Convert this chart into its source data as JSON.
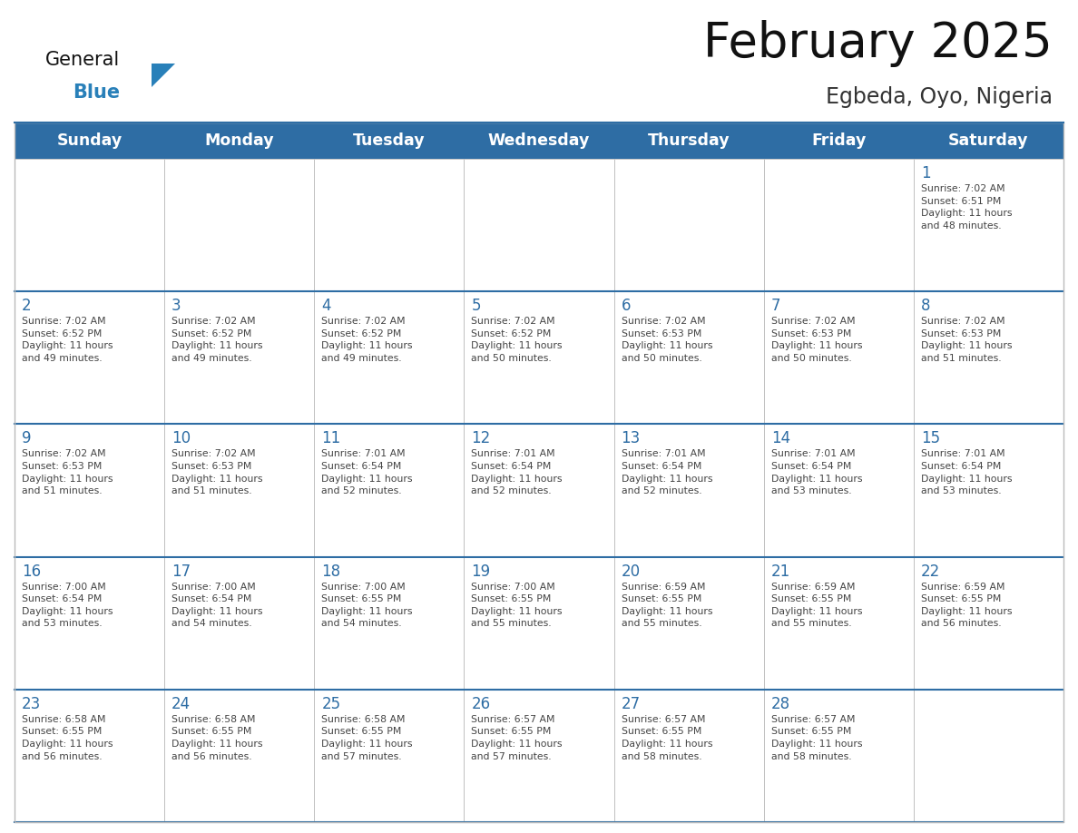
{
  "title": "February 2025",
  "subtitle": "Egbeda, Oyo, Nigeria",
  "header_color": "#2E6DA4",
  "header_text_color": "#FFFFFF",
  "cell_bg_color": "#FFFFFF",
  "cell_border_color": "#BBBBBB",
  "row_separator_color": "#2E6DA4",
  "day_num_color": "#2E6DA4",
  "text_color": "#444444",
  "days_of_week": [
    "Sunday",
    "Monday",
    "Tuesday",
    "Wednesday",
    "Thursday",
    "Friday",
    "Saturday"
  ],
  "weeks": [
    [
      {
        "day": "",
        "info": ""
      },
      {
        "day": "",
        "info": ""
      },
      {
        "day": "",
        "info": ""
      },
      {
        "day": "",
        "info": ""
      },
      {
        "day": "",
        "info": ""
      },
      {
        "day": "",
        "info": ""
      },
      {
        "day": "1",
        "info": "Sunrise: 7:02 AM\nSunset: 6:51 PM\nDaylight: 11 hours\nand 48 minutes."
      }
    ],
    [
      {
        "day": "2",
        "info": "Sunrise: 7:02 AM\nSunset: 6:52 PM\nDaylight: 11 hours\nand 49 minutes."
      },
      {
        "day": "3",
        "info": "Sunrise: 7:02 AM\nSunset: 6:52 PM\nDaylight: 11 hours\nand 49 minutes."
      },
      {
        "day": "4",
        "info": "Sunrise: 7:02 AM\nSunset: 6:52 PM\nDaylight: 11 hours\nand 49 minutes."
      },
      {
        "day": "5",
        "info": "Sunrise: 7:02 AM\nSunset: 6:52 PM\nDaylight: 11 hours\nand 50 minutes."
      },
      {
        "day": "6",
        "info": "Sunrise: 7:02 AM\nSunset: 6:53 PM\nDaylight: 11 hours\nand 50 minutes."
      },
      {
        "day": "7",
        "info": "Sunrise: 7:02 AM\nSunset: 6:53 PM\nDaylight: 11 hours\nand 50 minutes."
      },
      {
        "day": "8",
        "info": "Sunrise: 7:02 AM\nSunset: 6:53 PM\nDaylight: 11 hours\nand 51 minutes."
      }
    ],
    [
      {
        "day": "9",
        "info": "Sunrise: 7:02 AM\nSunset: 6:53 PM\nDaylight: 11 hours\nand 51 minutes."
      },
      {
        "day": "10",
        "info": "Sunrise: 7:02 AM\nSunset: 6:53 PM\nDaylight: 11 hours\nand 51 minutes."
      },
      {
        "day": "11",
        "info": "Sunrise: 7:01 AM\nSunset: 6:54 PM\nDaylight: 11 hours\nand 52 minutes."
      },
      {
        "day": "12",
        "info": "Sunrise: 7:01 AM\nSunset: 6:54 PM\nDaylight: 11 hours\nand 52 minutes."
      },
      {
        "day": "13",
        "info": "Sunrise: 7:01 AM\nSunset: 6:54 PM\nDaylight: 11 hours\nand 52 minutes."
      },
      {
        "day": "14",
        "info": "Sunrise: 7:01 AM\nSunset: 6:54 PM\nDaylight: 11 hours\nand 53 minutes."
      },
      {
        "day": "15",
        "info": "Sunrise: 7:01 AM\nSunset: 6:54 PM\nDaylight: 11 hours\nand 53 minutes."
      }
    ],
    [
      {
        "day": "16",
        "info": "Sunrise: 7:00 AM\nSunset: 6:54 PM\nDaylight: 11 hours\nand 53 minutes."
      },
      {
        "day": "17",
        "info": "Sunrise: 7:00 AM\nSunset: 6:54 PM\nDaylight: 11 hours\nand 54 minutes."
      },
      {
        "day": "18",
        "info": "Sunrise: 7:00 AM\nSunset: 6:55 PM\nDaylight: 11 hours\nand 54 minutes."
      },
      {
        "day": "19",
        "info": "Sunrise: 7:00 AM\nSunset: 6:55 PM\nDaylight: 11 hours\nand 55 minutes."
      },
      {
        "day": "20",
        "info": "Sunrise: 6:59 AM\nSunset: 6:55 PM\nDaylight: 11 hours\nand 55 minutes."
      },
      {
        "day": "21",
        "info": "Sunrise: 6:59 AM\nSunset: 6:55 PM\nDaylight: 11 hours\nand 55 minutes."
      },
      {
        "day": "22",
        "info": "Sunrise: 6:59 AM\nSunset: 6:55 PM\nDaylight: 11 hours\nand 56 minutes."
      }
    ],
    [
      {
        "day": "23",
        "info": "Sunrise: 6:58 AM\nSunset: 6:55 PM\nDaylight: 11 hours\nand 56 minutes."
      },
      {
        "day": "24",
        "info": "Sunrise: 6:58 AM\nSunset: 6:55 PM\nDaylight: 11 hours\nand 56 minutes."
      },
      {
        "day": "25",
        "info": "Sunrise: 6:58 AM\nSunset: 6:55 PM\nDaylight: 11 hours\nand 57 minutes."
      },
      {
        "day": "26",
        "info": "Sunrise: 6:57 AM\nSunset: 6:55 PM\nDaylight: 11 hours\nand 57 minutes."
      },
      {
        "day": "27",
        "info": "Sunrise: 6:57 AM\nSunset: 6:55 PM\nDaylight: 11 hours\nand 58 minutes."
      },
      {
        "day": "28",
        "info": "Sunrise: 6:57 AM\nSunset: 6:55 PM\nDaylight: 11 hours\nand 58 minutes."
      },
      {
        "day": "",
        "info": ""
      }
    ]
  ],
  "logo_general_color": "#111111",
  "logo_blue_color": "#2980B9",
  "fig_width": 11.88,
  "fig_height": 9.18
}
